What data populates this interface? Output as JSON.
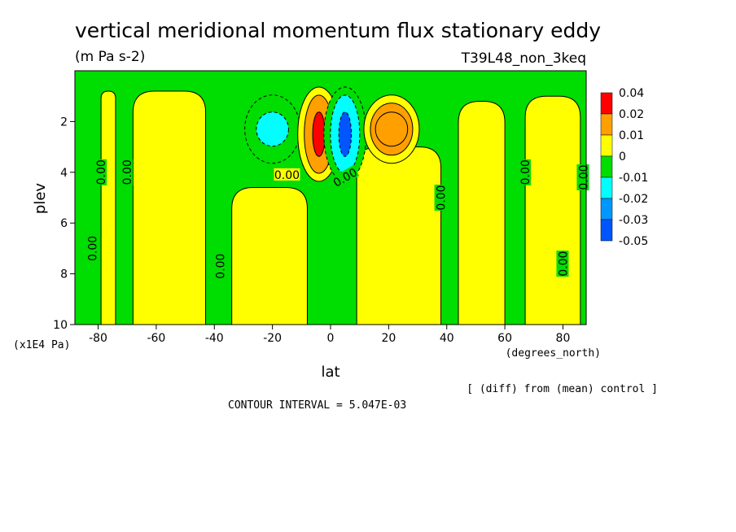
{
  "chart_data": {
    "type": "heatmap",
    "title": "vertical meridional momentum flux stationary eddy",
    "units": "(m Pa s-2)",
    "run_label": "T39L48_non_3keq",
    "xlabel": "lat",
    "x_units": "(degrees_north)",
    "ylabel": "plev",
    "y_units": "(x1E4 Pa)",
    "xlim": [
      -88,
      88
    ],
    "ylim": [
      10,
      0
    ],
    "x_ticks": [
      -80,
      -60,
      -40,
      -20,
      0,
      20,
      40,
      60,
      80
    ],
    "y_ticks": [
      2,
      4,
      6,
      8,
      10
    ],
    "note": "[ (diff) from (mean) control ]",
    "contour_interval": "CONTOUR INTERVAL = 5.047E-03",
    "zero_contour_label": "0.00",
    "legend": {
      "position": "right",
      "levels": [
        {
          "label": "0.04",
          "color": "#ff0000"
        },
        {
          "label": "0.02",
          "color": "#ff9f00"
        },
        {
          "label": "0.01",
          "color": "#ffff00"
        },
        {
          "label": "0",
          "color": "#00dd00"
        },
        {
          "label": "-0.01",
          "color": "#00ffff"
        },
        {
          "label": "-0.02",
          "color": "#0097ff"
        },
        {
          "label": "-0.03",
          "color": "#0055ff"
        },
        {
          "label": "-0.05",
          "color": ""
        }
      ]
    },
    "regions": [
      {
        "type": "band",
        "sign": "positive",
        "x0": -79,
        "x1": -74,
        "p0": 0.8,
        "p1": 10
      },
      {
        "type": "band",
        "sign": "positive",
        "x0": -68,
        "x1": -43,
        "p0": 0.8,
        "p1": 10
      },
      {
        "type": "band",
        "sign": "positive",
        "x0": -34,
        "x1": -8,
        "p0": 4.6,
        "p1": 10
      },
      {
        "type": "band",
        "sign": "positive",
        "x0": 9,
        "x1": 38,
        "p0": 3.0,
        "p1": 10
      },
      {
        "type": "band",
        "sign": "positive",
        "x0": 44,
        "x1": 60,
        "p0": 1.2,
        "p1": 10
      },
      {
        "type": "band",
        "sign": "positive",
        "x0": 67,
        "x1": 86,
        "p0": 1.0,
        "p1": 10
      },
      {
        "type": "blob",
        "sign": "negative",
        "x": -20,
        "p": 2.3,
        "level": -0.01
      },
      {
        "type": "blob",
        "sign": "positive",
        "x": -4,
        "p": 2.5,
        "level": 0.04
      },
      {
        "type": "blob",
        "sign": "negative",
        "x": 5,
        "p": 2.5,
        "level": -0.03
      },
      {
        "type": "blob",
        "sign": "positive",
        "x": 21,
        "p": 2.3,
        "level": 0.02
      }
    ]
  }
}
